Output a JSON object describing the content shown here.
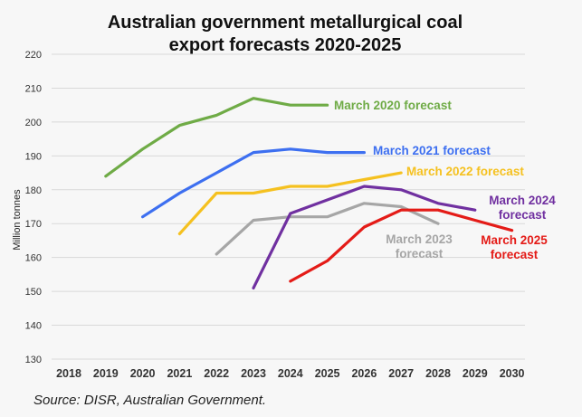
{
  "chart_data": {
    "type": "line",
    "title_line1": "Australian government metallurgical coal",
    "title_line2": "export forecasts 2020-2025",
    "ylabel": "Million tonnes",
    "xlabel": "",
    "ylim": [
      130,
      220
    ],
    "yticks": [
      "220",
      "210",
      "200",
      "190",
      "180",
      "170",
      "160",
      "150",
      "140",
      "130"
    ],
    "x_categories": [
      "2018",
      "2019",
      "2020",
      "2021",
      "2022",
      "2023",
      "2024",
      "2025",
      "2026",
      "2027",
      "2028",
      "2029",
      "2030"
    ],
    "grid": true,
    "series": [
      {
        "name": "March 2020 forecast",
        "label_lines": [
          "March 2020 forecast"
        ],
        "color": "#6fab46",
        "x": [
          2019,
          2020,
          2021,
          2022,
          2023,
          2024,
          2025
        ],
        "values": [
          184,
          192,
          199,
          202,
          207,
          205,
          205
        ]
      },
      {
        "name": "March 2021 forecast",
        "label_lines": [
          "March 2021 forecast"
        ],
        "color": "#3d6ff0",
        "x": [
          2020,
          2021,
          2022,
          2023,
          2024,
          2025,
          2026
        ],
        "values": [
          172,
          179,
          185,
          191,
          192,
          191,
          191
        ]
      },
      {
        "name": "March 2022 forecast",
        "label_lines": [
          "March 2022 forecast"
        ],
        "color": "#f5c120",
        "x": [
          2021,
          2022,
          2023,
          2024,
          2025,
          2026,
          2027
        ],
        "values": [
          167,
          179,
          179,
          181,
          181,
          183,
          185
        ]
      },
      {
        "name": "March 2023 forecast",
        "label_lines": [
          "March 2023",
          "forecast"
        ],
        "color": "#a6a6a6",
        "x": [
          2022,
          2023,
          2024,
          2025,
          2026,
          2027,
          2028
        ],
        "values": [
          161,
          171,
          172,
          172,
          176,
          175,
          170
        ]
      },
      {
        "name": "March 2024 forecast",
        "label_lines": [
          "March 2024",
          "forecast"
        ],
        "color": "#7030a0",
        "x": [
          2023,
          2024,
          2025,
          2026,
          2027,
          2028,
          2029
        ],
        "values": [
          151,
          173,
          177,
          181,
          180,
          176,
          174
        ]
      },
      {
        "name": "March 2025 forecast",
        "label_lines": [
          "March 2025",
          "forecast"
        ],
        "color": "#e41b17",
        "x": [
          2024,
          2025,
          2026,
          2027,
          2028,
          2029,
          2030
        ],
        "values": [
          153,
          159,
          169,
          174,
          174,
          171,
          168
        ]
      }
    ]
  },
  "source": "Source: DISR, Australian Government."
}
